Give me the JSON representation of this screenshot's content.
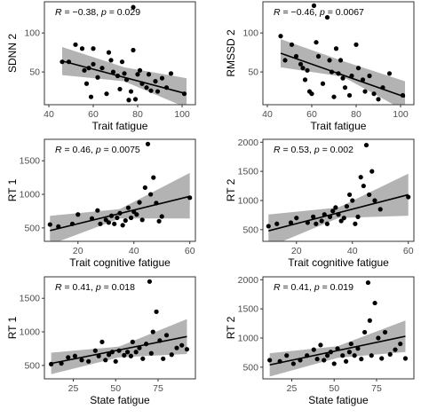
{
  "colors": {
    "points": "#000000",
    "fit_line": "#000000",
    "confidence_band": "#999999",
    "frame": "#333333",
    "tick_text": "#4d4d4d"
  },
  "chart_data": [
    {
      "type": "scatter",
      "xlabel": "Trait fatigue",
      "ylabel": "SDNN 2",
      "xlim": [
        38,
        106
      ],
      "ylim": [
        8,
        140
      ],
      "xticks": [
        40,
        60,
        80,
        100
      ],
      "yticks": [
        50,
        100
      ],
      "annotation": {
        "r_label": "R",
        "r_text": " = −0.38, ",
        "p_label": "p",
        "p_text": " = 0.029"
      },
      "fit": {
        "x": [
          46,
          102
        ],
        "y": [
          64,
          22
        ]
      },
      "band": {
        "x": [
          46,
          74,
          102
        ],
        "upper": [
          82,
          56,
          42
        ],
        "lower": [
          46,
          38,
          4
        ]
      },
      "points": [
        [
          46,
          63
        ],
        [
          49,
          63
        ],
        [
          52,
          85
        ],
        [
          55,
          80
        ],
        [
          56,
          52
        ],
        [
          57,
          35
        ],
        [
          58,
          55
        ],
        [
          59,
          18
        ],
        [
          60,
          60
        ],
        [
          60,
          80
        ],
        [
          62,
          43
        ],
        [
          64,
          55
        ],
        [
          66,
          22
        ],
        [
          67,
          75
        ],
        [
          68,
          65
        ],
        [
          69,
          50
        ],
        [
          71,
          45
        ],
        [
          72,
          28
        ],
        [
          73,
          63
        ],
        [
          74,
          48
        ],
        [
          75,
          40
        ],
        [
          76,
          14
        ],
        [
          77,
          25
        ],
        [
          78,
          133
        ],
        [
          78,
          78
        ],
        [
          79,
          15
        ],
        [
          80,
          47
        ],
        [
          81,
          52
        ],
        [
          82,
          35
        ],
        [
          84,
          30
        ],
        [
          85,
          47
        ],
        [
          86,
          26
        ],
        [
          88,
          38
        ],
        [
          89,
          25
        ],
        [
          91,
          42
        ],
        [
          93,
          30
        ],
        [
          95,
          48
        ],
        [
          101,
          22
        ]
      ]
    },
    {
      "type": "scatter",
      "xlabel": "Trait fatigue",
      "ylabel": "RMSSD 2",
      "xlim": [
        38,
        106
      ],
      "ylim": [
        8,
        140
      ],
      "xticks": [
        40,
        60,
        80,
        100
      ],
      "yticks": [
        50,
        100
      ],
      "annotation": {
        "r_label": "R",
        "r_text": " = −0.46, ",
        "p_label": "p",
        "p_text": " = 0.0067"
      },
      "fit": {
        "x": [
          46,
          102
        ],
        "y": [
          74,
          18
        ]
      },
      "band": {
        "x": [
          46,
          74,
          102
        ],
        "upper": [
          92,
          64,
          38
        ],
        "lower": [
          56,
          44,
          0
        ]
      },
      "points": [
        [
          46,
          96
        ],
        [
          48,
          65
        ],
        [
          51,
          85
        ],
        [
          53,
          70
        ],
        [
          55,
          60
        ],
        [
          56,
          55
        ],
        [
          57,
          40
        ],
        [
          58,
          52
        ],
        [
          59,
          25
        ],
        [
          60,
          22
        ],
        [
          61,
          135
        ],
        [
          62,
          88
        ],
        [
          63,
          70
        ],
        [
          65,
          35
        ],
        [
          67,
          120
        ],
        [
          68,
          65
        ],
        [
          69,
          50
        ],
        [
          70,
          18
        ],
        [
          71,
          80
        ],
        [
          72,
          48
        ],
        [
          73,
          65
        ],
        [
          74,
          42
        ],
        [
          75,
          30
        ],
        [
          77,
          20
        ],
        [
          78,
          45
        ],
        [
          80,
          85
        ],
        [
          81,
          55
        ],
        [
          83,
          40
        ],
        [
          84,
          25
        ],
        [
          86,
          45
        ],
        [
          88,
          22
        ],
        [
          90,
          15
        ],
        [
          92,
          30
        ],
        [
          95,
          48
        ],
        [
          101,
          20
        ]
      ]
    },
    {
      "type": "scatter",
      "xlabel": "Trait cognitive fatigue",
      "ylabel": "RT 1",
      "xlim": [
        8,
        62
      ],
      "ylim": [
        300,
        1820
      ],
      "xticks": [
        20,
        40,
        60
      ],
      "yticks": [
        500,
        1000,
        1500
      ],
      "annotation": {
        "r_label": "R",
        "r_text": " = 0.46, ",
        "p_label": "p",
        "p_text": " = 0.0075"
      },
      "fit": {
        "x": [
          10,
          60
        ],
        "y": [
          460,
          970
        ]
      },
      "band": {
        "x": [
          10,
          35,
          60
        ],
        "upper": [
          680,
          780,
          1320
        ],
        "lower": [
          250,
          640,
          640
        ]
      },
      "points": [
        [
          10,
          550
        ],
        [
          13,
          520
        ],
        [
          18,
          560
        ],
        [
          20,
          700
        ],
        [
          25,
          640
        ],
        [
          27,
          760
        ],
        [
          28,
          560
        ],
        [
          30,
          620
        ],
        [
          31,
          580
        ],
        [
          32,
          680
        ],
        [
          33,
          560
        ],
        [
          34,
          650
        ],
        [
          35,
          720
        ],
        [
          36,
          540
        ],
        [
          37,
          610
        ],
        [
          38,
          800
        ],
        [
          39,
          650
        ],
        [
          40,
          740
        ],
        [
          41,
          700
        ],
        [
          42,
          880
        ],
        [
          43,
          620
        ],
        [
          44,
          1100
        ],
        [
          45,
          1750
        ],
        [
          46,
          1000
        ],
        [
          47,
          1250
        ],
        [
          48,
          870
        ],
        [
          49,
          600
        ],
        [
          50,
          670
        ],
        [
          60,
          950
        ]
      ]
    },
    {
      "type": "scatter",
      "xlabel": "Trait cognitive fatigue",
      "ylabel": "RT 2",
      "xlim": [
        8,
        62
      ],
      "ylim": [
        300,
        2050
      ],
      "xticks": [
        20,
        40,
        60
      ],
      "yticks": [
        500,
        1000,
        1500,
        2000
      ],
      "annotation": {
        "r_label": "R",
        "r_text": " = 0.53, ",
        "p_label": "p",
        "p_text": " = 0.002"
      },
      "fit": {
        "x": [
          10,
          60
        ],
        "y": [
          480,
          1100
        ]
      },
      "band": {
        "x": [
          10,
          35,
          60
        ],
        "upper": [
          760,
          880,
          1460
        ],
        "lower": [
          200,
          700,
          740
        ]
      },
      "points": [
        [
          10,
          560
        ],
        [
          13,
          600
        ],
        [
          18,
          620
        ],
        [
          20,
          700
        ],
        [
          24,
          620
        ],
        [
          26,
          720
        ],
        [
          27,
          600
        ],
        [
          29,
          650
        ],
        [
          30,
          760
        ],
        [
          31,
          600
        ],
        [
          32,
          720
        ],
        [
          33,
          820
        ],
        [
          34,
          880
        ],
        [
          35,
          760
        ],
        [
          36,
          650
        ],
        [
          37,
          700
        ],
        [
          38,
          900
        ],
        [
          39,
          1100
        ],
        [
          40,
          1000
        ],
        [
          41,
          600
        ],
        [
          42,
          720
        ],
        [
          43,
          1400
        ],
        [
          44,
          1250
        ],
        [
          45,
          1950
        ],
        [
          46,
          1100
        ],
        [
          47,
          1500
        ],
        [
          48,
          1000
        ],
        [
          50,
          850
        ],
        [
          60,
          1060
        ]
      ]
    },
    {
      "type": "scatter",
      "xlabel": "State fatigue",
      "ylabel": "RT 1",
      "xlim": [
        8,
        97
      ],
      "ylim": [
        300,
        1820
      ],
      "xticks": [
        25,
        50,
        75
      ],
      "yticks": [
        500,
        1000,
        1500
      ],
      "annotation": {
        "r_label": "R",
        "r_text": " = 0.41, ",
        "p_label": "p",
        "p_text": " = 0.018"
      },
      "fit": {
        "x": [
          12,
          92
        ],
        "y": [
          530,
          930
        ]
      },
      "band": {
        "x": [
          12,
          52,
          92
        ],
        "upper": [
          690,
          780,
          1190
        ],
        "lower": [
          370,
          620,
          670
        ]
      },
      "points": [
        [
          12,
          520
        ],
        [
          18,
          530
        ],
        [
          22,
          620
        ],
        [
          26,
          640
        ],
        [
          30,
          580
        ],
        [
          34,
          560
        ],
        [
          38,
          720
        ],
        [
          40,
          640
        ],
        [
          42,
          850
        ],
        [
          44,
          580
        ],
        [
          46,
          660
        ],
        [
          48,
          700
        ],
        [
          50,
          560
        ],
        [
          52,
          720
        ],
        [
          55,
          650
        ],
        [
          57,
          700
        ],
        [
          59,
          640
        ],
        [
          60,
          850
        ],
        [
          62,
          700
        ],
        [
          64,
          760
        ],
        [
          66,
          600
        ],
        [
          68,
          820
        ],
        [
          70,
          1750
        ],
        [
          71,
          680
        ],
        [
          72,
          1000
        ],
        [
          74,
          1300
        ],
        [
          76,
          870
        ],
        [
          78,
          600
        ],
        [
          80,
          950
        ],
        [
          83,
          660
        ],
        [
          86,
          760
        ],
        [
          89,
          800
        ],
        [
          92,
          740
        ]
      ]
    },
    {
      "type": "scatter",
      "xlabel": "State fatigue",
      "ylabel": "RT 2",
      "xlim": [
        8,
        97
      ],
      "ylim": [
        300,
        2050
      ],
      "xticks": [
        25,
        50,
        75
      ],
      "yticks": [
        500,
        1000,
        1500,
        2000
      ],
      "annotation": {
        "r_label": "R",
        "r_text": " = 0.41, ",
        "p_label": "p",
        "p_text": " = 0.019"
      },
      "fit": {
        "x": [
          12,
          92
        ],
        "y": [
          540,
          1030
        ]
      },
      "band": {
        "x": [
          12,
          52,
          92
        ],
        "upper": [
          740,
          860,
          1300
        ],
        "lower": [
          340,
          660,
          760
        ]
      },
      "points": [
        [
          12,
          620
        ],
        [
          18,
          600
        ],
        [
          22,
          700
        ],
        [
          26,
          560
        ],
        [
          30,
          620
        ],
        [
          34,
          700
        ],
        [
          38,
          800
        ],
        [
          40,
          640
        ],
        [
          42,
          880
        ],
        [
          44,
          620
        ],
        [
          46,
          700
        ],
        [
          48,
          760
        ],
        [
          50,
          560
        ],
        [
          52,
          820
        ],
        [
          55,
          700
        ],
        [
          57,
          600
        ],
        [
          59,
          760
        ],
        [
          60,
          900
        ],
        [
          62,
          700
        ],
        [
          64,
          820
        ],
        [
          66,
          640
        ],
        [
          68,
          1100
        ],
        [
          70,
          1950
        ],
        [
          71,
          1300
        ],
        [
          72,
          700
        ],
        [
          74,
          1600
        ],
        [
          76,
          1000
        ],
        [
          78,
          650
        ],
        [
          80,
          1100
        ],
        [
          83,
          720
        ],
        [
          86,
          800
        ],
        [
          89,
          900
        ],
        [
          92,
          650
        ]
      ]
    }
  ]
}
